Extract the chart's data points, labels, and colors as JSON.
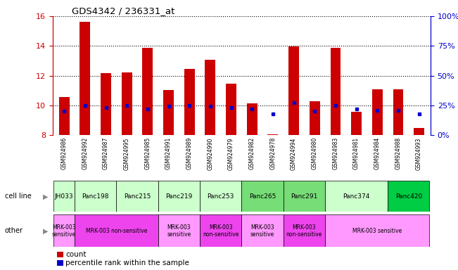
{
  "title": "GDS4342 / 236331_at",
  "samples": [
    "GSM924986",
    "GSM924992",
    "GSM924987",
    "GSM924995",
    "GSM924985",
    "GSM924991",
    "GSM924989",
    "GSM924990",
    "GSM924979",
    "GSM924982",
    "GSM924978",
    "GSM924994",
    "GSM924980",
    "GSM924983",
    "GSM924981",
    "GSM924984",
    "GSM924988",
    "GSM924993"
  ],
  "counts": [
    10.55,
    15.6,
    12.15,
    12.2,
    13.85,
    11.05,
    12.45,
    13.05,
    11.45,
    10.15,
    8.05,
    13.95,
    10.25,
    13.85,
    9.55,
    11.1,
    11.1,
    8.45
  ],
  "percentile_ranks_pct": [
    20,
    25,
    23,
    25,
    22,
    24,
    25,
    24,
    23,
    22,
    18,
    27,
    20,
    25,
    22,
    21,
    21,
    18
  ],
  "bar_base": 8.0,
  "ylim_left": [
    8,
    16
  ],
  "ylim_right": [
    0,
    100
  ],
  "yticks_left": [
    8,
    10,
    12,
    14,
    16
  ],
  "yticks_right": [
    0,
    25,
    50,
    75,
    100
  ],
  "bar_color": "#cc0000",
  "dot_color": "#0000cc",
  "cell_lines": [
    {
      "name": "JH033",
      "start": 0,
      "end": 1,
      "color": "#ccffcc"
    },
    {
      "name": "Panc198",
      "start": 1,
      "end": 3,
      "color": "#ccffcc"
    },
    {
      "name": "Panc215",
      "start": 3,
      "end": 5,
      "color": "#ccffcc"
    },
    {
      "name": "Panc219",
      "start": 5,
      "end": 7,
      "color": "#ccffcc"
    },
    {
      "name": "Panc253",
      "start": 7,
      "end": 9,
      "color": "#ccffcc"
    },
    {
      "name": "Panc265",
      "start": 9,
      "end": 11,
      "color": "#77dd77"
    },
    {
      "name": "Panc291",
      "start": 11,
      "end": 13,
      "color": "#77dd77"
    },
    {
      "name": "Panc374",
      "start": 13,
      "end": 16,
      "color": "#ccffcc"
    },
    {
      "name": "Panc420",
      "start": 16,
      "end": 18,
      "color": "#00cc44"
    }
  ],
  "other_groups": [
    {
      "label": "MRK-003\nsensitive",
      "start": 0,
      "end": 1,
      "color": "#ff99ff"
    },
    {
      "label": "MRK-003 non-sensitive",
      "start": 1,
      "end": 5,
      "color": "#ee44ee"
    },
    {
      "label": "MRK-003\nsensitive",
      "start": 5,
      "end": 7,
      "color": "#ff99ff"
    },
    {
      "label": "MRK-003\nnon-sensitive",
      "start": 7,
      "end": 9,
      "color": "#ee44ee"
    },
    {
      "label": "MRK-003\nsensitive",
      "start": 9,
      "end": 11,
      "color": "#ff99ff"
    },
    {
      "label": "MRK-003\nnon-sensitive",
      "start": 11,
      "end": 13,
      "color": "#ee44ee"
    },
    {
      "label": "MRK-003 sensitive",
      "start": 13,
      "end": 18,
      "color": "#ff99ff"
    }
  ],
  "dotted_grid_color": "#000000",
  "right_axis_color": "#0000cc",
  "left_axis_color": "#cc0000",
  "tick_bg_color": "#cccccc"
}
